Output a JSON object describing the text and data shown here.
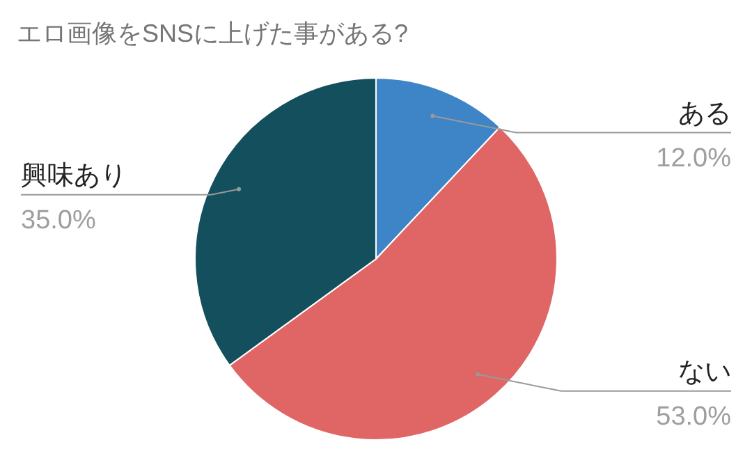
{
  "chart_data": {
    "type": "pie",
    "title": "エロ画像をSNSに上げた事がある?",
    "categories": [
      "ある",
      "ない",
      "興味あり"
    ],
    "values": [
      12,
      53,
      35
    ],
    "value_labels": [
      "12.0%",
      "53.0%",
      "35.0%"
    ],
    "colors": [
      "#3d85c6",
      "#e06666",
      "#134f5c"
    ]
  }
}
